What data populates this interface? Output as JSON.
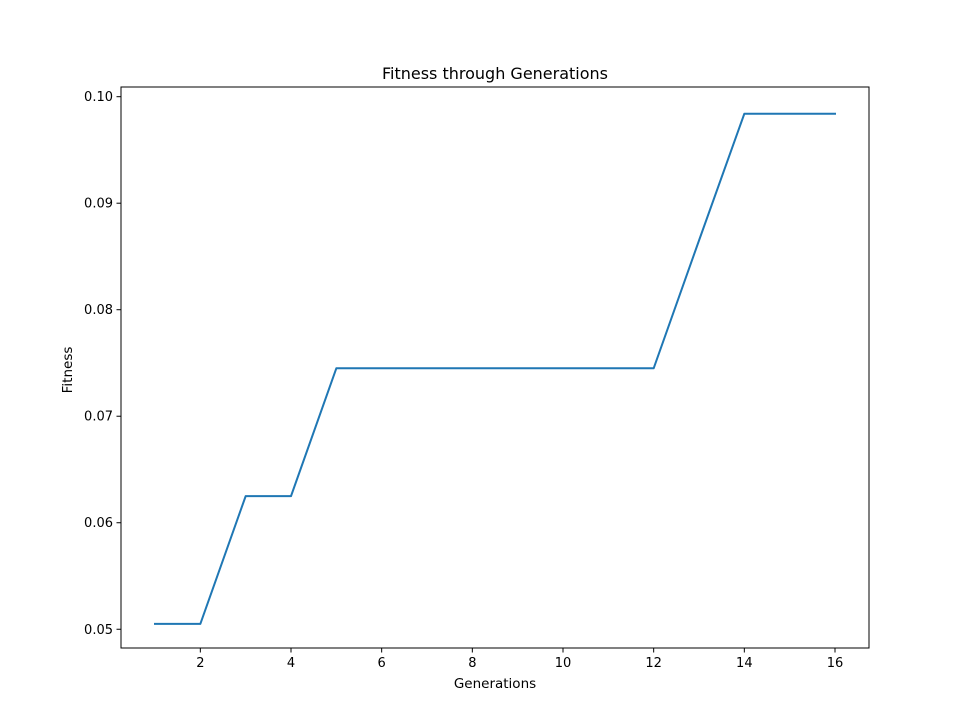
{
  "chart_data": {
    "type": "line",
    "title": "Fitness through Generations",
    "xlabel": "Generations",
    "ylabel": "Fitness",
    "xlim": [
      0.25,
      16.75
    ],
    "ylim": [
      0.04824,
      0.10091
    ],
    "xticks": [
      2,
      4,
      6,
      8,
      10,
      12,
      14,
      16
    ],
    "xtick_labels": [
      "2",
      "4",
      "6",
      "8",
      "10",
      "12",
      "14",
      "16"
    ],
    "yticks": [
      0.05,
      0.06,
      0.07,
      0.08,
      0.09,
      0.1
    ],
    "ytick_labels": [
      "0.05",
      "0.06",
      "0.07",
      "0.08",
      "0.09",
      "0.10"
    ],
    "grid": false,
    "series": [
      {
        "color": "#1f77b4",
        "x": [
          1,
          2,
          3,
          4,
          5,
          6,
          7,
          8,
          9,
          10,
          11,
          12,
          13,
          14,
          15,
          16
        ],
        "y": [
          0.0505,
          0.0505,
          0.0625,
          0.0625,
          0.0745,
          0.0745,
          0.0745,
          0.0745,
          0.0745,
          0.0745,
          0.0745,
          0.0745,
          0.0865,
          0.0984,
          0.0984,
          0.0984
        ]
      }
    ]
  }
}
